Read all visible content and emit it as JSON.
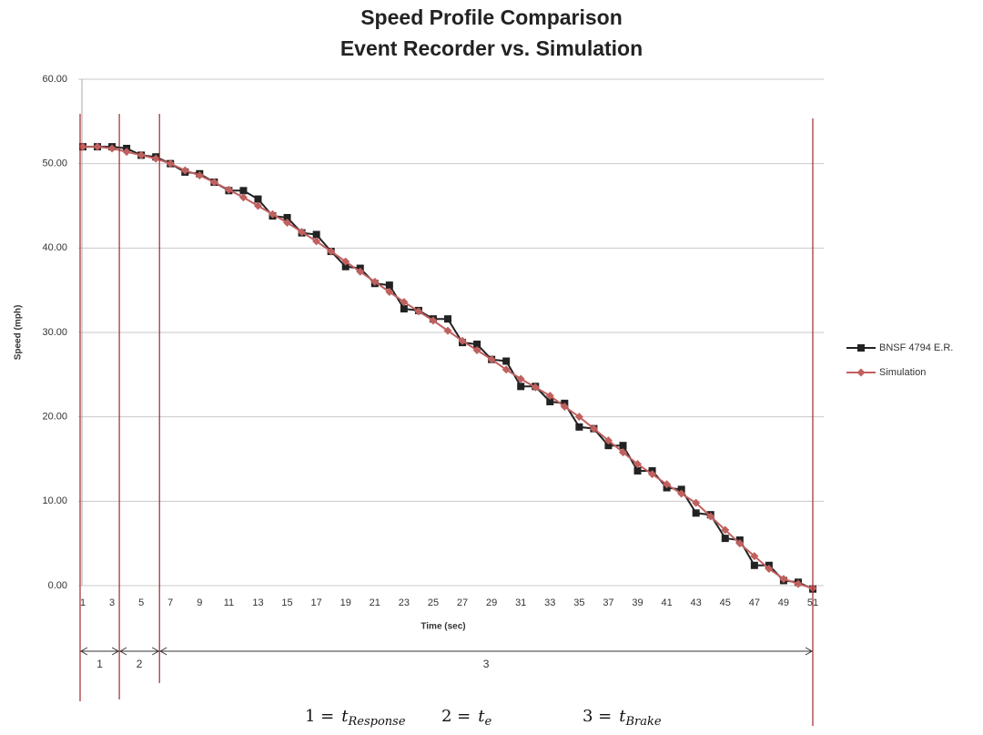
{
  "chart_data": {
    "type": "line",
    "title": "Speed Profile Comparison",
    "subtitle": "Event Recorder vs. Simulation",
    "y_axis_label": "Speed (mph)",
    "x_axis_label": "Time (sec)",
    "categories": [
      "1",
      null,
      "3",
      null,
      "5",
      null,
      "7",
      null,
      "9",
      null,
      "11",
      null,
      "13",
      null,
      "15",
      null,
      "17",
      null,
      "19",
      null,
      "21",
      null,
      "23",
      null,
      "25",
      null,
      "27",
      null,
      "29",
      null,
      "31",
      null,
      "33",
      null,
      "35",
      null,
      "37",
      null,
      "39",
      null,
      "41",
      null,
      "43",
      null,
      "45",
      null,
      "47",
      null,
      "49",
      null,
      "51"
    ],
    "series": [
      {
        "name": "BNSF 4794 E.R.",
        "color": "#222222",
        "marker": "square",
        "values": [
          52,
          52,
          52,
          51.8,
          51,
          50.8,
          50,
          49,
          48.8,
          47.8,
          46.8,
          46.8,
          45.8,
          43.8,
          43.6,
          41.8,
          41.6,
          39.6,
          37.8,
          37.6,
          35.8,
          35.6,
          32.8,
          32.6,
          31.6,
          31.6,
          28.8,
          28.6,
          26.8,
          26.6,
          23.6,
          23.6,
          21.8,
          21.6,
          18.8,
          18.6,
          16.6,
          16.6,
          13.6,
          13.6,
          11.6,
          11.4,
          8.6,
          8.4,
          5.6,
          5.4,
          2.4,
          2.4,
          0.6,
          0.4,
          -0.4
        ]
      },
      {
        "name": "Simulation",
        "color": "#c0605f",
        "marker": "diamond",
        "values": [
          52,
          52,
          51.8,
          51.4,
          51,
          50.6,
          50,
          49.2,
          48.6,
          47.8,
          46.9,
          46,
          45,
          44,
          43,
          41.9,
          40.8,
          39.6,
          38.4,
          37.2,
          36,
          34.8,
          33.6,
          32.5,
          31.4,
          30.2,
          29,
          27.9,
          26.8,
          25.6,
          24.5,
          23.5,
          22.5,
          21.2,
          20,
          18.6,
          17.2,
          15.8,
          14.4,
          13.2,
          12,
          10.9,
          9.8,
          8.2,
          6.6,
          5,
          3.5,
          2,
          0.8,
          0.2,
          -0.3
        ]
      }
    ],
    "ylim": [
      0,
      60
    ],
    "yticks": [
      {
        "value": 0,
        "label": "0.00"
      },
      {
        "value": 10,
        "label": "10.00"
      },
      {
        "value": 20,
        "label": "20.00"
      },
      {
        "value": 30,
        "label": "30.00"
      },
      {
        "value": 40,
        "label": "40.00"
      },
      {
        "value": 50,
        "label": "50.00"
      },
      {
        "value": 60,
        "label": "60.00"
      }
    ],
    "grid": true,
    "legend": "right",
    "phase_boundaries": [
      1,
      3.5,
      6.25,
      51
    ],
    "phase_labels": [
      "1",
      "2",
      "3"
    ],
    "phase_notes": [
      {
        "label": "1 =",
        "symbol": "t",
        "subscript": "Response"
      },
      {
        "label": "2 =",
        "symbol": "t",
        "subscript": "e"
      },
      {
        "label": "3 =",
        "symbol": "t",
        "subscript": "Brake"
      }
    ]
  }
}
